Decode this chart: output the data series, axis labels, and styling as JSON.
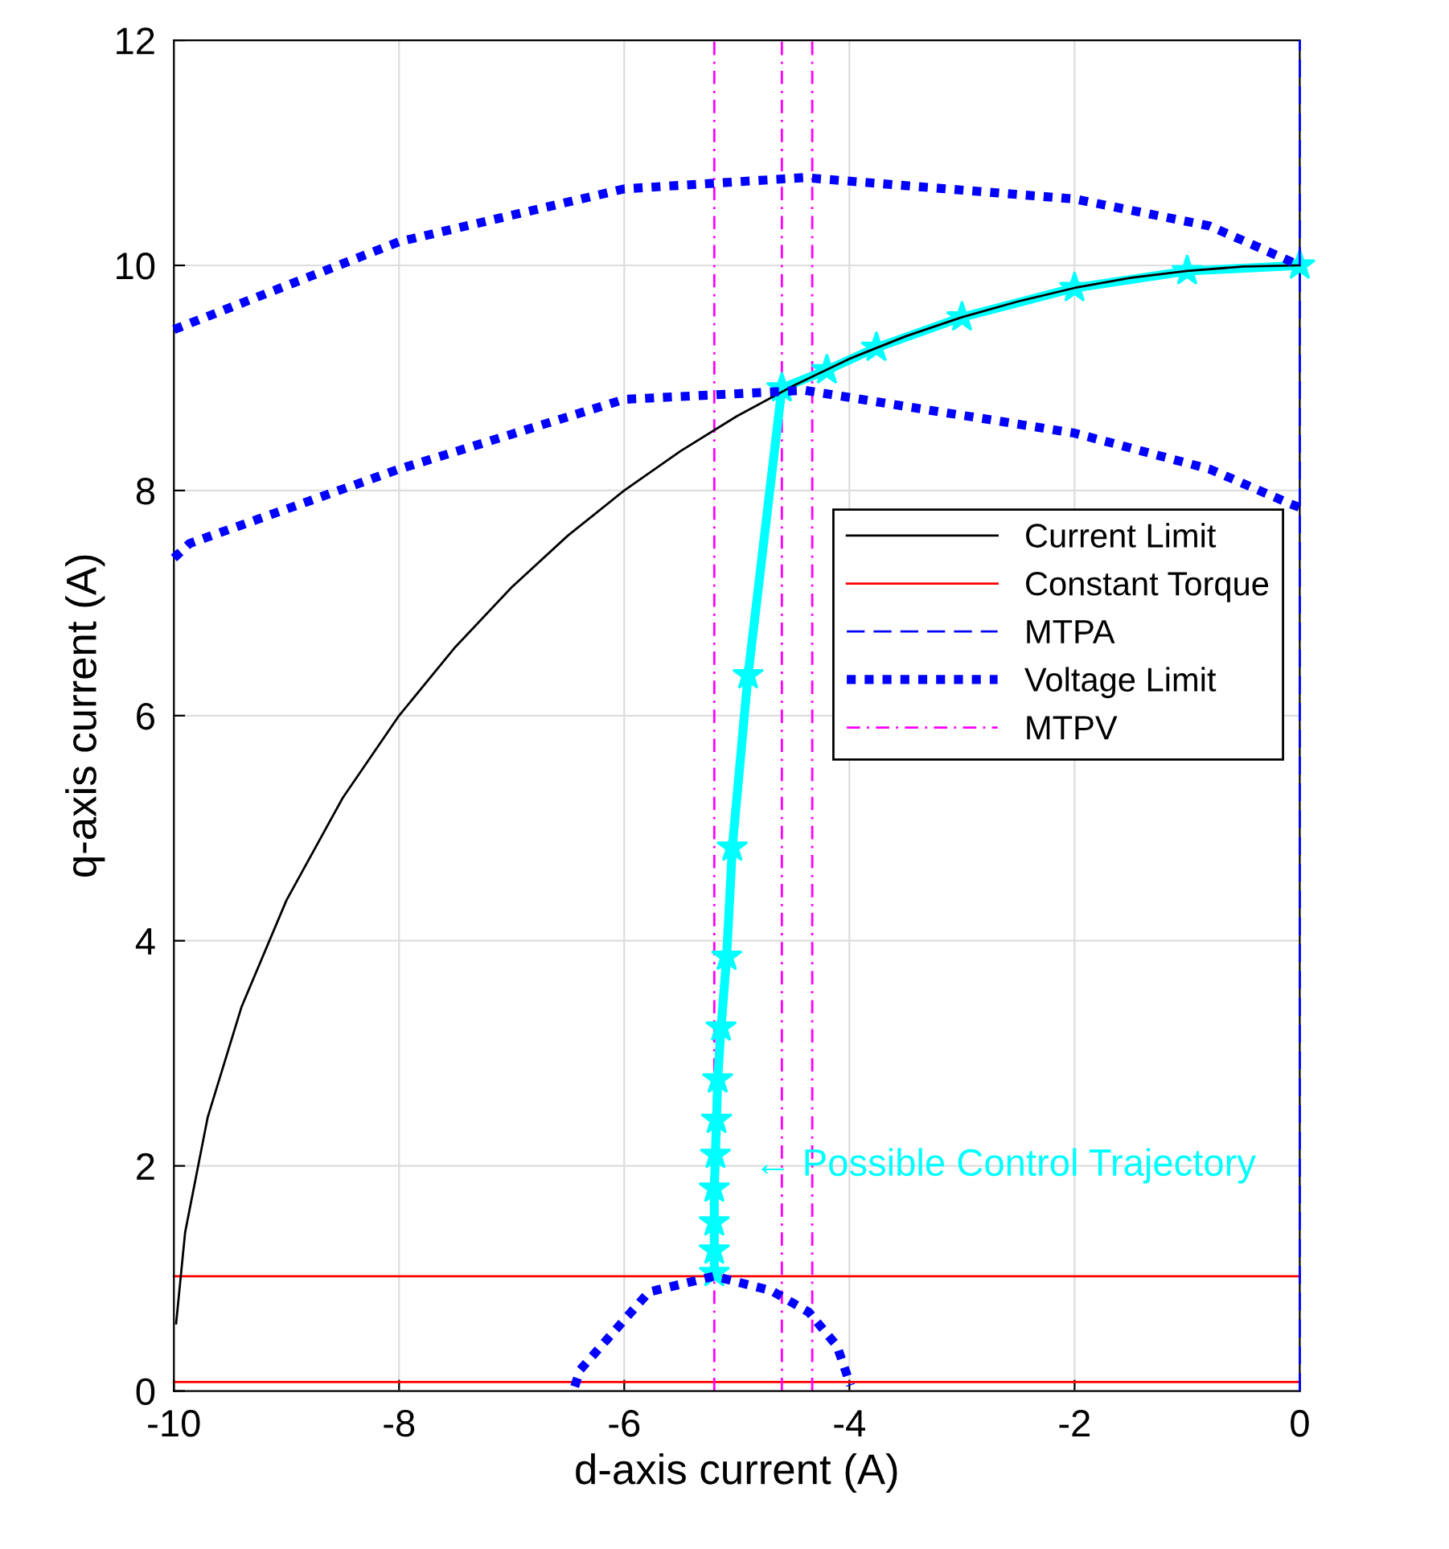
{
  "chart_data": {
    "type": "line",
    "xlabel": "d-axis current (A)",
    "ylabel": "q-axis current (A)",
    "xlim": [
      -10,
      0
    ],
    "ylim": [
      0,
      12
    ],
    "xticks": [
      -10,
      -8,
      -6,
      -4,
      -2,
      0
    ],
    "yticks": [
      0,
      2,
      4,
      6,
      8,
      10,
      12
    ],
    "grid": true,
    "legend": "right",
    "series": [
      {
        "name": "Current Limit",
        "color": "#000000",
        "line_style": "solid",
        "x": [
          -9.98,
          -9.9,
          -9.7,
          -9.4,
          -9,
          -8.5,
          -8,
          -7.5,
          -7,
          -6.5,
          -6,
          -5.5,
          -5,
          -4.5,
          -4,
          -3.5,
          -3,
          -2.5,
          -2,
          -1.5,
          -1,
          -0.5,
          0
        ],
        "values": [
          0.6,
          1.41,
          2.43,
          3.41,
          4.36,
          5.27,
          6,
          6.61,
          7.14,
          7.6,
          8,
          8.35,
          8.66,
          8.93,
          9.17,
          9.37,
          9.54,
          9.68,
          9.8,
          9.89,
          9.95,
          9.99,
          10
        ]
      },
      {
        "name": "Constant Torque",
        "color": "#ff0000",
        "line_style": "solid",
        "x": [
          -10,
          0
        ],
        "values": [
          1.02,
          1.02
        ]
      },
      {
        "color": "#ff0000",
        "line_style": "solid",
        "x": [
          -10,
          0
        ],
        "values": [
          0.08,
          0.08
        ]
      },
      {
        "name": "MTPA",
        "color": "#0000ff",
        "line_style": "dashed",
        "x": [
          0,
          0
        ],
        "values": [
          0,
          12
        ]
      },
      {
        "name": "Voltage Limit",
        "color": "#0000ff",
        "line_style": "dotted",
        "x": [
          -10,
          -8,
          -6,
          -4.4,
          -2,
          -0.8,
          0
        ],
        "values": [
          9.43,
          10.21,
          10.68,
          10.78,
          10.59,
          10.35,
          10.0
        ]
      },
      {
        "color": "#0000ff",
        "line_style": "dotted",
        "x": [
          -10,
          -9.86,
          -8,
          -6,
          -4.4,
          -2,
          -0.8,
          -0.08,
          0
        ],
        "values": [
          7.4,
          7.53,
          8.19,
          8.81,
          8.89,
          8.51,
          8.19,
          7.88,
          7.85
        ]
      },
      {
        "color": "#0000ff",
        "line_style": "dotted",
        "x": [
          -6.44,
          -6.39,
          -5.78,
          -5.2,
          -4.69,
          -4.36,
          -4.11,
          -3.99
        ],
        "values": [
          0.04,
          0.19,
          0.88,
          1.02,
          0.89,
          0.7,
          0.4,
          0.05
        ]
      },
      {
        "name": "MTPV",
        "color": "#ff00ff",
        "line_style": "dashdot",
        "x": [
          -5.2,
          -5.2
        ],
        "values": [
          0,
          12
        ]
      },
      {
        "color": "#ff00ff",
        "line_style": "dashdot",
        "x": [
          -4.6,
          -4.6
        ],
        "values": [
          0,
          12
        ]
      },
      {
        "color": "#ff00ff",
        "line_style": "dashdot",
        "x": [
          -4.33,
          -4.33
        ],
        "values": [
          0,
          12
        ]
      },
      {
        "color": "#00ffff",
        "line_style": "solid",
        "marker": "star",
        "x": [
          0,
          -1,
          -2,
          -3,
          -3.76,
          -4.2,
          -4.6,
          -4.9,
          -5.04,
          -5.09,
          -5.14,
          -5.17,
          -5.18,
          -5.19,
          -5.2,
          -5.2,
          -5.2,
          -5.2
        ],
        "values": [
          10,
          9.95,
          9.8,
          9.54,
          9.27,
          9.07,
          8.91,
          6.36,
          4.83,
          3.86,
          3.23,
          2.77,
          2.41,
          2.1,
          1.8,
          1.5,
          1.25,
          1.05
        ]
      }
    ],
    "annotations": [
      "← Possible Control Trajectory"
    ]
  }
}
